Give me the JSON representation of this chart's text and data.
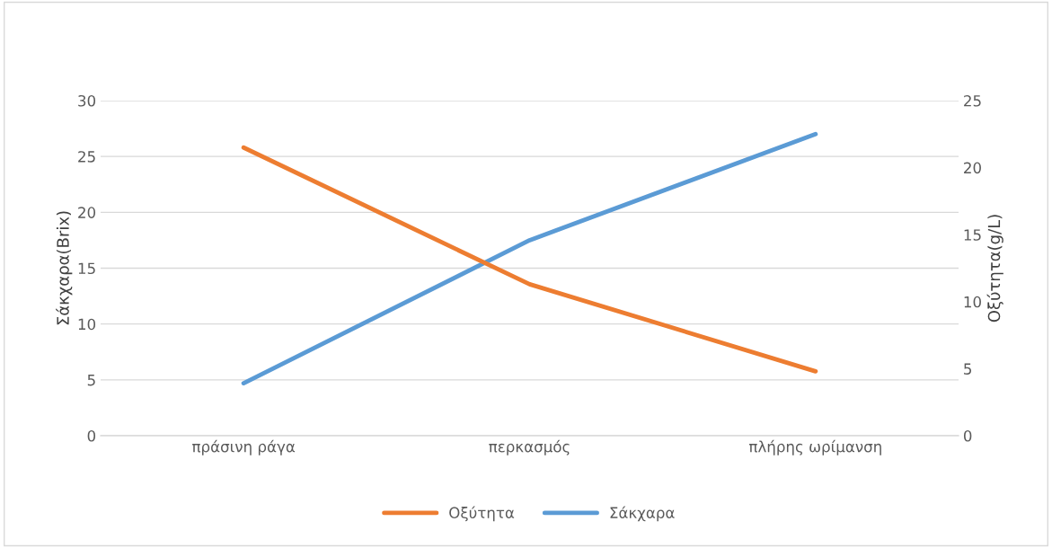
{
  "chart_data": {
    "type": "line",
    "ylabel": "Σάκχαρα(Brix)",
    "y2label": "Οξύτητα(g/L)",
    "categories": [
      "πράσινη ράγα",
      "περκασμός",
      "πλήρης ωρίμανση"
    ],
    "series": [
      {
        "name": "Οξύτητα",
        "color": "#ed7d31",
        "values": [
          21.5,
          11.3,
          4.8
        ],
        "axis": "y2"
      },
      {
        "name": "Σάκχαρα",
        "color": "#5b9bd5",
        "values": [
          4.7,
          17.5,
          27.0
        ]
      }
    ],
    "ylim": [
      0,
      30
    ],
    "yticks": [
      0,
      5,
      10,
      15,
      20,
      25,
      30
    ],
    "y2lim": [
      0,
      25
    ],
    "y2ticks": [
      0,
      5,
      10,
      15,
      20,
      25
    ],
    "grid": "y",
    "legend": "bottom",
    "marker": "none",
    "line_style": "solid"
  }
}
